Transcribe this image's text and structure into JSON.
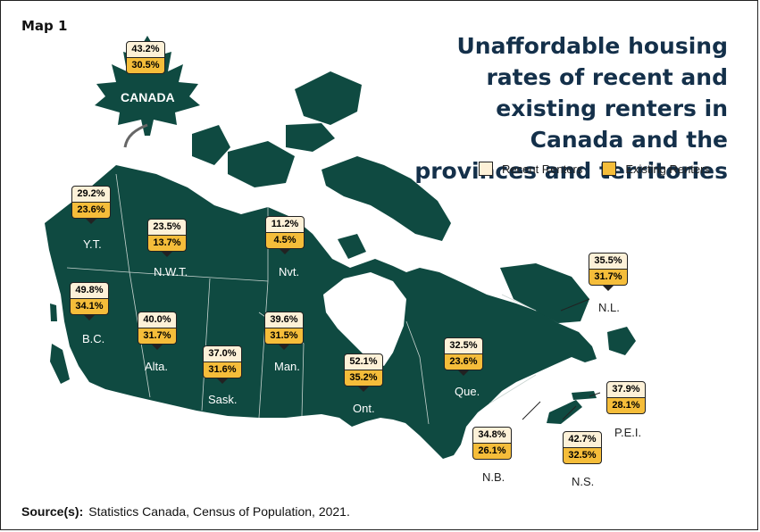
{
  "map_label": "Map 1",
  "title": "Unaffordable housing rates of recent and existing renters in Canada and the provinces and territories",
  "legend": {
    "recent": "Recent Renters",
    "existing": "Existing Renters"
  },
  "colors": {
    "land": "#0f4a41",
    "recent": "#fdf1d8",
    "existing": "#f5bd3a",
    "title": "#14304a"
  },
  "canada": {
    "label": "CANADA",
    "recent": "43.2%",
    "existing": "30.5%"
  },
  "regions": [
    {
      "name": "Y.T.",
      "recent": "29.2%",
      "existing": "23.6%"
    },
    {
      "name": "N.W.T.",
      "recent": "23.5%",
      "existing": "13.7%"
    },
    {
      "name": "Nvt.",
      "recent": "11.2%",
      "existing": "4.5%"
    },
    {
      "name": "B.C.",
      "recent": "49.8%",
      "existing": "34.1%"
    },
    {
      "name": "Alta.",
      "recent": "40.0%",
      "existing": "31.7%"
    },
    {
      "name": "Sask.",
      "recent": "37.0%",
      "existing": "31.6%"
    },
    {
      "name": "Man.",
      "recent": "39.6%",
      "existing": "31.5%"
    },
    {
      "name": "Ont.",
      "recent": "52.1%",
      "existing": "35.2%"
    },
    {
      "name": "Que.",
      "recent": "32.5%",
      "existing": "23.6%"
    },
    {
      "name": "N.L.",
      "recent": "35.5%",
      "existing": "31.7%"
    },
    {
      "name": "N.B.",
      "recent": "34.8%",
      "existing": "26.1%"
    },
    {
      "name": "N.S.",
      "recent": "42.7%",
      "existing": "32.5%"
    },
    {
      "name": "P.E.I.",
      "recent": "37.9%",
      "existing": "28.1%"
    }
  ],
  "source": {
    "label": "Source(s):",
    "text": "Statistics Canada, Census of Population, 2021."
  }
}
